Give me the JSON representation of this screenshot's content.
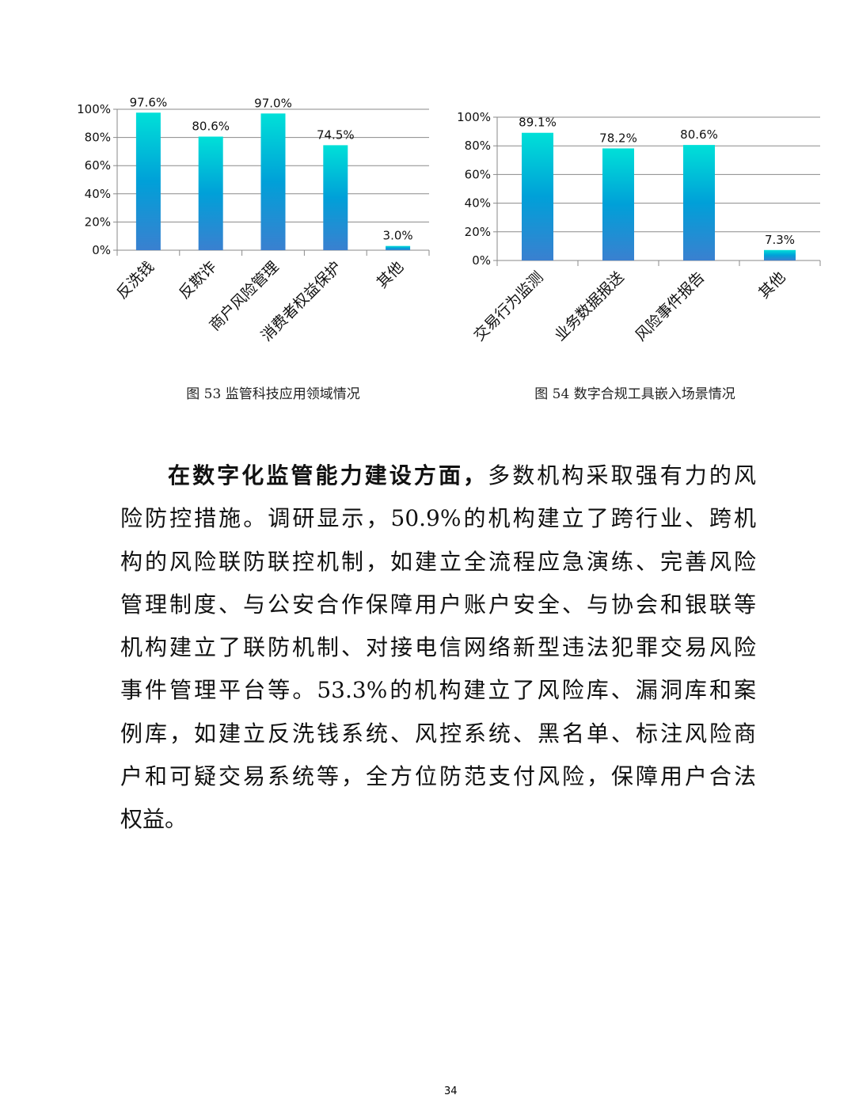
{
  "chart_data": [
    {
      "type": "bar",
      "categories": [
        "反洗钱",
        "反欺诈",
        "商户风险管理",
        "消费者权益保护",
        "其他"
      ],
      "values": [
        97.6,
        80.6,
        97.0,
        74.5,
        3.0
      ],
      "data_labels": [
        "97.6%",
        "80.6%",
        "97.0%",
        "74.5%",
        "3.0%"
      ],
      "yticks": [
        "0%",
        "20%",
        "40%",
        "60%",
        "80%",
        "100%"
      ],
      "ylim": [
        0,
        100
      ],
      "grid": true,
      "bar_gradient": [
        "#00e0d8",
        "#00a0d8",
        "#3a80d0"
      ],
      "title": ""
    },
    {
      "type": "bar",
      "categories": [
        "交易行为监测",
        "业务数据报送",
        "风险事件报告",
        "其他"
      ],
      "values": [
        89.1,
        78.2,
        80.6,
        7.3
      ],
      "data_labels": [
        "89.1%",
        "78.2%",
        "80.6%",
        "7.3%"
      ],
      "yticks": [
        "0%",
        "20%",
        "40%",
        "60%",
        "80%",
        "100%"
      ],
      "ylim": [
        0,
        100
      ],
      "grid": true,
      "bar_gradient": [
        "#00e0d8",
        "#00a0d8",
        "#3a80d0"
      ],
      "title": ""
    }
  ],
  "captions": {
    "fig53": "图 53 监管科技应用领域情况",
    "fig54": "图 54 数字合规工具嵌入场景情况"
  },
  "paragraph": {
    "bold_lead": "在数字化监管能力建设方面，",
    "first_line_rest": "多数机构采取强有力的风",
    "lines": [
      "险防控措施。调研显示，50.9%的机构建立了跨行业、跨机",
      "构的风险联防联控机制，如建立全流程应急演练、完善风险",
      "管理制度、与公安合作保障用户账户安全、与协会和银联等",
      "机构建立了联防机制、对接电信网络新型违法犯罪交易风险",
      "事件管理平台等。53.3%的机构建立了风险库、漏洞库和案",
      "例库，如建立反洗钱系统、风控系统、黑名单、标注风险商",
      "户和可疑交易系统等，全方位防范支付风险，保障用户合法",
      "权益。"
    ]
  },
  "page_number": "34"
}
